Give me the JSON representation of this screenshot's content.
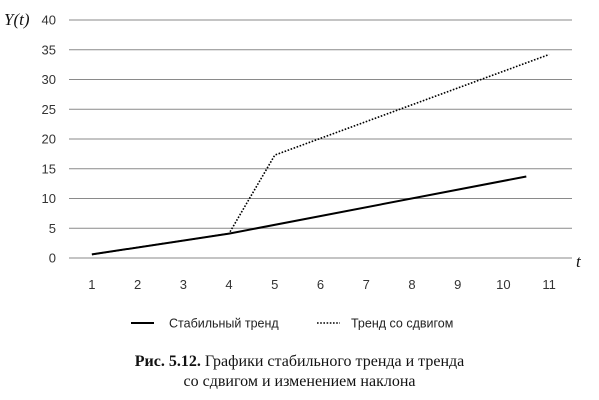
{
  "chart_data": {
    "type": "line",
    "ylabel": "Y(t)",
    "xlabel": "t",
    "categories": [
      "1",
      "2",
      "3",
      "4",
      "5",
      "6",
      "7",
      "8",
      "9",
      "10",
      "11"
    ],
    "y_ticks": [
      "0",
      "5",
      "10",
      "15",
      "20",
      "25",
      "30",
      "35",
      "40"
    ],
    "ylim": [
      0,
      40
    ],
    "grid": "horizontal",
    "legend_position": "bottom",
    "series": [
      {
        "name": "Стабильный тренд",
        "style": "solid",
        "color": "#000000",
        "points": [
          [
            1,
            0.6
          ],
          [
            4,
            4.1
          ],
          [
            10.5,
            13.7
          ]
        ]
      },
      {
        "name": "Тренд со  сдвигом",
        "style": "dotted",
        "color": "#000000",
        "points": [
          [
            1,
            0.6
          ],
          [
            4,
            4.1
          ],
          [
            5,
            17.3
          ],
          [
            11,
            34.2
          ]
        ]
      }
    ]
  },
  "caption": {
    "figure_label": "Рис. 5.12.",
    "line1": " Графики стабильного тренда и тренда",
    "line2": "со сдвигом и изменением наклона"
  }
}
